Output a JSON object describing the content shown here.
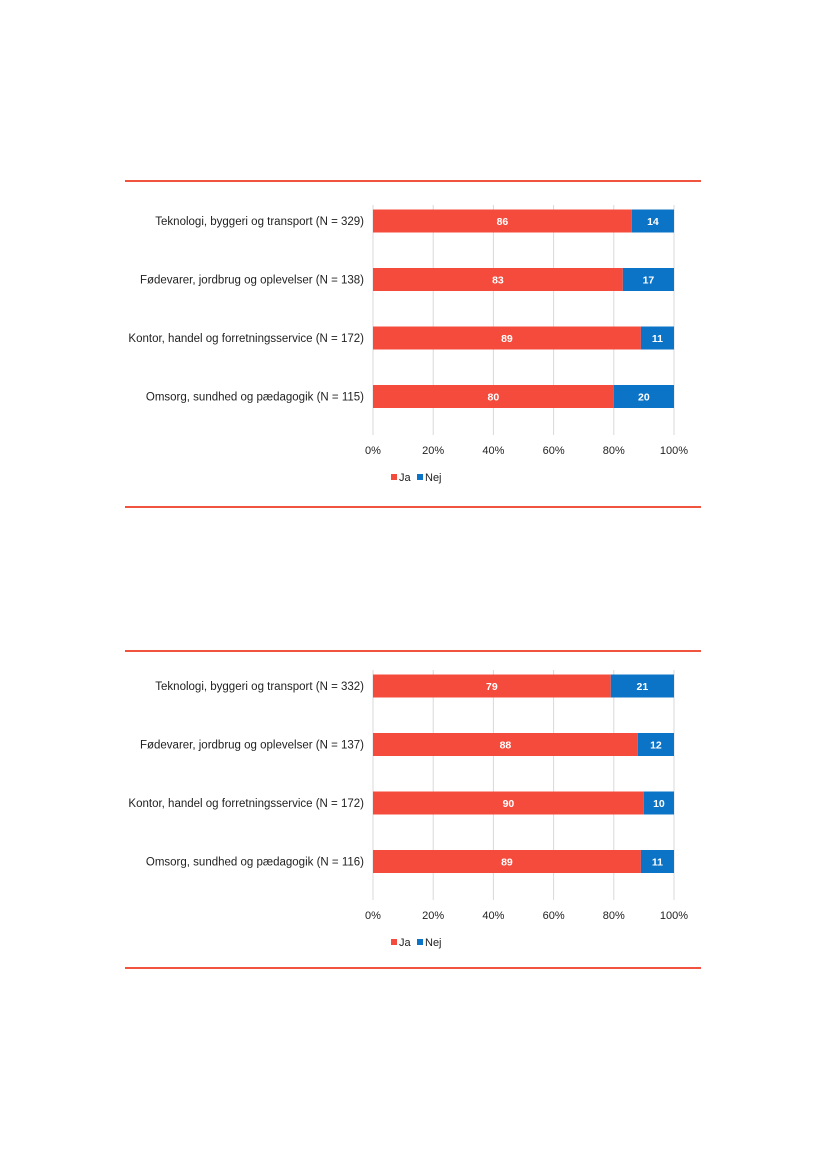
{
  "colors": {
    "ja": "#f44b3c",
    "nej": "#0c74c7",
    "rule": "#f0543f",
    "grid": "#d9d9d9"
  },
  "chart_data": [
    {
      "type": "bar",
      "orientation": "horizontal",
      "stacked": true,
      "categories": [
        "Teknologi, byggeri og transport (N = 329)",
        "Fødevarer, jordbrug og oplevelser (N = 138)",
        "Kontor, handel og forretningsservice (N = 172)",
        "Omsorg, sundhed og pædagogik (N = 115)"
      ],
      "series": [
        {
          "name": "Ja",
          "values": [
            86,
            83,
            89,
            80
          ]
        },
        {
          "name": "Nej",
          "values": [
            14,
            17,
            11,
            20
          ]
        }
      ],
      "xticks": [
        "0%",
        "20%",
        "40%",
        "60%",
        "80%",
        "100%"
      ],
      "xlim": [
        0,
        100
      ],
      "grid": true,
      "legend": "bottom"
    },
    {
      "type": "bar",
      "orientation": "horizontal",
      "stacked": true,
      "categories": [
        "Teknologi, byggeri og transport (N = 332)",
        "Fødevarer, jordbrug og oplevelser (N = 137)",
        "Kontor, handel og forretningsservice (N = 172)",
        "Omsorg, sundhed og pædagogik (N = 116)"
      ],
      "series": [
        {
          "name": "Ja",
          "values": [
            79,
            88,
            90,
            89
          ]
        },
        {
          "name": "Nej",
          "values": [
            21,
            12,
            10,
            11
          ]
        }
      ],
      "xticks": [
        "0%",
        "20%",
        "40%",
        "60%",
        "80%",
        "100%"
      ],
      "xlim": [
        0,
        100
      ],
      "grid": true,
      "legend": "bottom"
    }
  ]
}
